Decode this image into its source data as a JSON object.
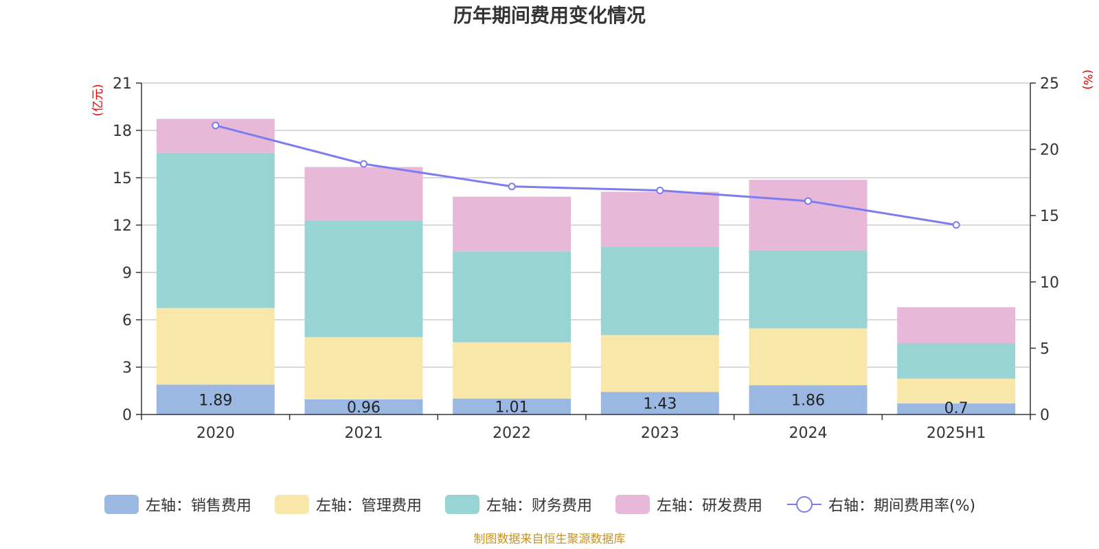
{
  "chart_data": {
    "type": "bar",
    "title": "历年期间费用变化情况",
    "categories": [
      "2020",
      "2021",
      "2022",
      "2023",
      "2024",
      "2025H1"
    ],
    "left_axis": {
      "unit": "(亿元)",
      "ylim": [
        0,
        21
      ],
      "ticks": [
        0,
        3,
        6,
        9,
        12,
        15,
        18,
        21
      ]
    },
    "right_axis": {
      "unit": "(%)",
      "ylim": [
        0,
        25
      ],
      "ticks": [
        0,
        5,
        10,
        15,
        20,
        25
      ]
    },
    "grid": true,
    "legend_position": "bottom",
    "series": [
      {
        "name": "左轴：销售费用",
        "type": "bar",
        "axis": "left",
        "color": "#9bb8e3",
        "values": [
          1.89,
          0.96,
          1.01,
          1.43,
          1.86,
          0.7
        ],
        "labels": [
          "1.89",
          "0.96",
          "1.01",
          "1.43",
          "1.86",
          "0.7"
        ]
      },
      {
        "name": "左轴：管理费用",
        "type": "bar",
        "axis": "left",
        "color": "#f8e7a8",
        "values": [
          4.86,
          3.94,
          3.57,
          3.6,
          3.6,
          1.57
        ]
      },
      {
        "name": "左轴：财务费用",
        "type": "bar",
        "axis": "left",
        "color": "#98d4d4",
        "values": [
          9.83,
          7.38,
          5.75,
          5.58,
          4.94,
          2.23
        ]
      },
      {
        "name": "左轴：研发费用",
        "type": "bar",
        "axis": "left",
        "color": "#e8b8d9",
        "values": [
          2.15,
          3.4,
          3.47,
          3.5,
          4.47,
          2.3
        ]
      },
      {
        "name": "右轴：期间费用率(%)",
        "type": "line",
        "axis": "right",
        "color": "#7b7cf0",
        "values": [
          21.8,
          18.9,
          17.2,
          16.9,
          16.1,
          14.3
        ]
      }
    ]
  },
  "footer": {
    "source": "制图数据来自恒生聚源数据库"
  }
}
